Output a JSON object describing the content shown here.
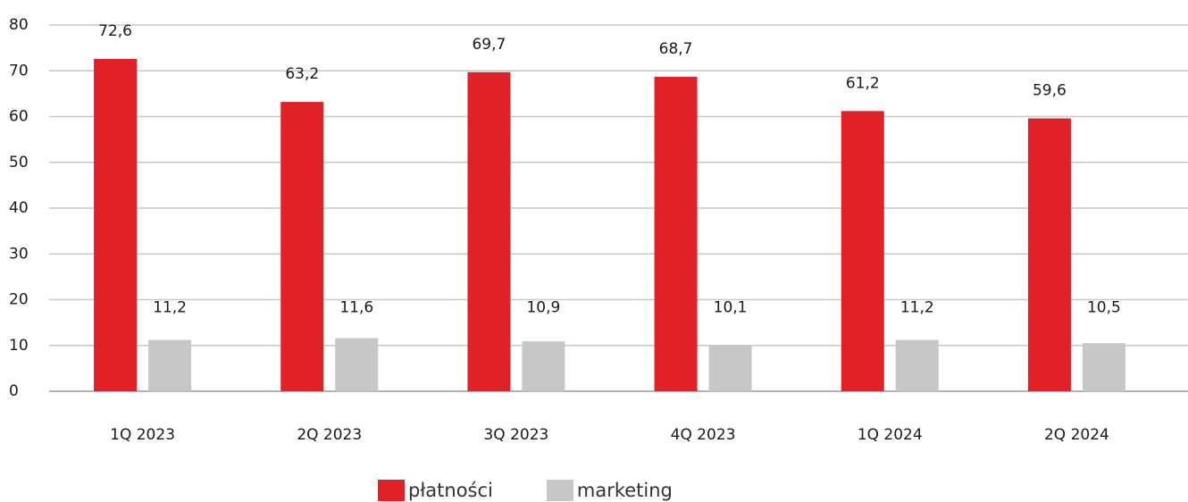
{
  "chart_data": {
    "type": "bar",
    "categories": [
      "1Q 2023",
      "2Q 2023",
      "3Q 2023",
      "4Q 2023",
      "1Q 2024",
      "2Q 2024"
    ],
    "series": [
      {
        "name": "płatności",
        "values": [
          72.6,
          63.2,
          69.7,
          68.7,
          61.2,
          59.6
        ],
        "labels": [
          "72,6",
          "63,2",
          "69,7",
          "68,7",
          "61,2",
          "59,6"
        ],
        "color": "#e02127"
      },
      {
        "name": "marketing",
        "values": [
          11.2,
          11.6,
          10.9,
          10.1,
          11.2,
          10.5
        ],
        "labels": [
          "11,2",
          "11,6",
          "10,9",
          "10,1",
          "11,2",
          "10,5"
        ],
        "color": "#c7c7c7"
      }
    ],
    "ylim": [
      0,
      80
    ],
    "yticks": [
      0,
      10,
      20,
      30,
      40,
      50,
      60,
      70,
      80
    ],
    "grid": true,
    "legend_position": "bottom"
  }
}
